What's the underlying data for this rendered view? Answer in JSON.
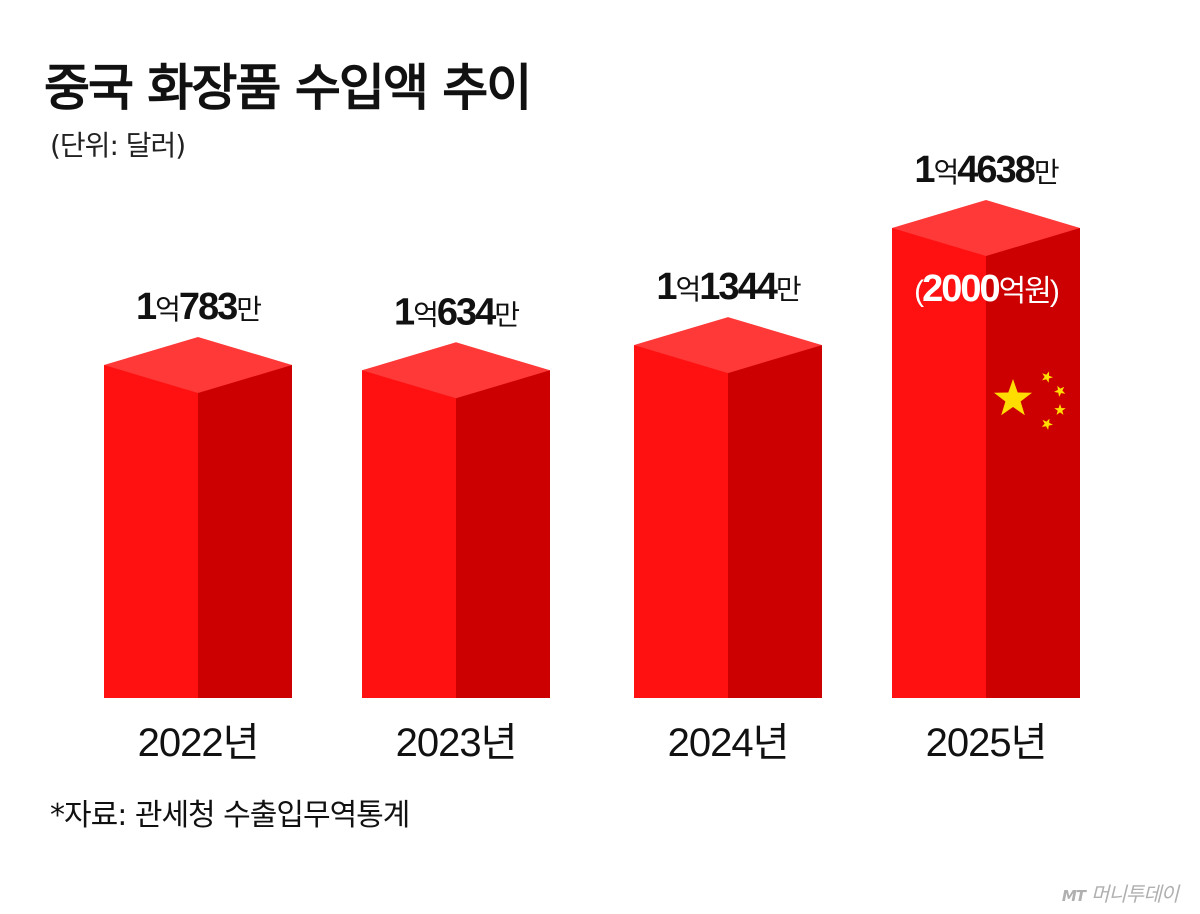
{
  "title": "중국 화장품 수입액 추이",
  "unit_note": "(단위: 달러)",
  "source": "*자료: 관세청 수출입무역통계",
  "watermark": {
    "logo": "MT",
    "text": "머니투데이"
  },
  "colors": {
    "front": "#ff1111",
    "side": "#cc0000",
    "top": "#ff3838",
    "star": "#ffdd00"
  },
  "chart_data": {
    "type": "bar",
    "categories": [
      "2022년",
      "2023년",
      "2024년",
      "2025년"
    ],
    "values": [
      107830000,
      106340000,
      113440000,
      146380000
    ],
    "data_labels": [
      {
        "n1": "1",
        "u1": "억",
        "n2": "783",
        "u2": "만"
      },
      {
        "n1": "1",
        "u1": "억",
        "n2": "634",
        "u2": "만"
      },
      {
        "n1": "1",
        "u1": "억",
        "n2": "1344",
        "u2": "만"
      },
      {
        "n1": "1",
        "u1": "억",
        "n2": "4638",
        "u2": "만"
      }
    ],
    "highlight": {
      "index": 3,
      "paren_open": "(",
      "amount": "2000",
      "unit": "억원",
      "paren_close": ")"
    },
    "title": "중국 화장품 수입액 추이",
    "ylabel": "(단위: 달러)",
    "legend": "none",
    "grid": false
  }
}
